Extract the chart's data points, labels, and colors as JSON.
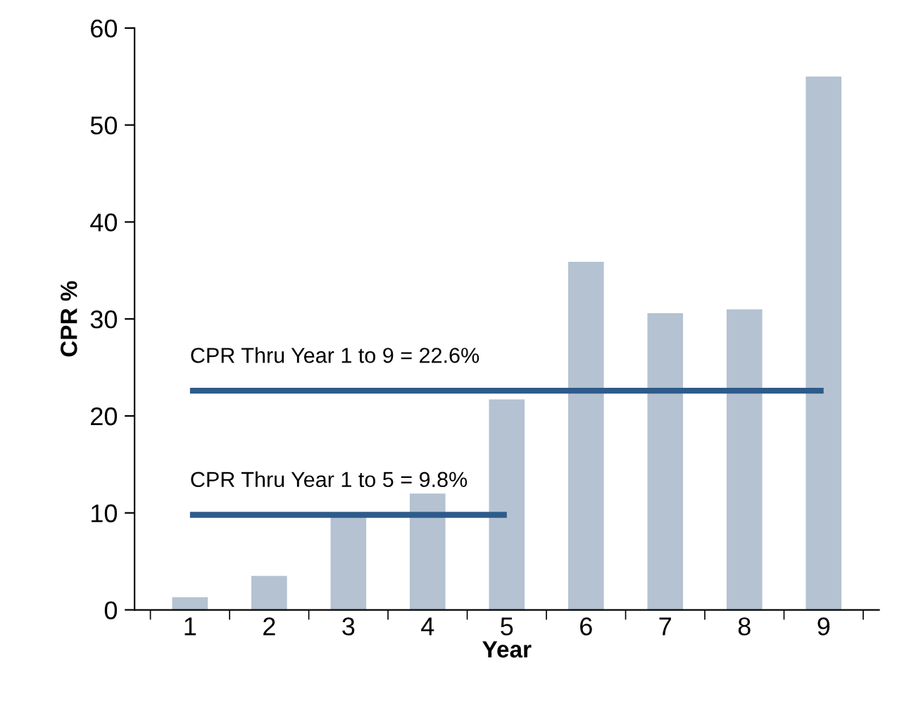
{
  "chart_data": {
    "type": "bar",
    "xlabel": "Year",
    "ylabel": "CPR %",
    "categories": [
      "1",
      "2",
      "3",
      "4",
      "5",
      "6",
      "7",
      "8",
      "9"
    ],
    "series": [
      {
        "color": "#b4c2d2",
        "values": [
          1.3,
          3.5,
          9.7,
          12,
          21.7,
          35.9,
          30.6,
          31,
          55
        ]
      },
      {
        "type": "line",
        "color": "#2e5b8a",
        "values": [
          22.6,
          22.6,
          22.6,
          22.6,
          22.6,
          22.6,
          22.6,
          22.6,
          22.6
        ]
      },
      {
        "type": "line",
        "color": "#2e5b8a",
        "values": [
          9.8,
          9.8,
          9.8,
          9.8,
          9.8,
          null,
          null,
          null,
          null
        ]
      }
    ],
    "annotations": [
      {
        "text": "CPR Thru Year 1 to 9 = 22.6%",
        "x": "1",
        "y": 22.6
      },
      {
        "text": "CPR Thru Year 1 to 5 = 9.8%",
        "x": "1",
        "y": 9.8
      }
    ],
    "ylim": [
      0,
      60
    ],
    "yticks": [
      0,
      10,
      20,
      30,
      40,
      50,
      60
    ],
    "grid": false,
    "legend": false
  }
}
